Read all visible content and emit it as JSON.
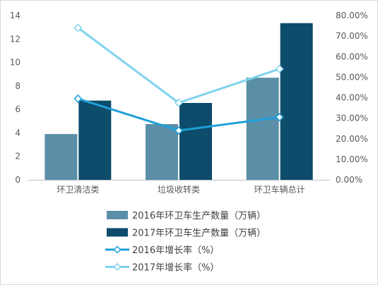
{
  "chart_data": {
    "type": "bar",
    "categories": [
      "环卫清洁类",
      "垃圾收转类",
      "环卫车辆总计"
    ],
    "series": [
      {
        "name": "2016年环卫车生产数量（万辆）",
        "kind": "bar",
        "axis": "left",
        "color": "#5b8fa8",
        "values": [
          3.9,
          4.75,
          8.7
        ]
      },
      {
        "name": "2017年环卫车生产数量（万辆）",
        "kind": "bar",
        "axis": "left",
        "color": "#0d4c6b",
        "values": [
          6.75,
          6.55,
          13.35
        ]
      },
      {
        "name": "2016年增长率（%）",
        "kind": "line",
        "axis": "right",
        "color": "#1ea0d8",
        "values": [
          0.395,
          0.24,
          0.305
        ]
      },
      {
        "name": "2017年增长率（%）",
        "kind": "line",
        "axis": "right",
        "color": "#7fd3ee",
        "values": [
          0.74,
          0.375,
          0.54
        ]
      }
    ],
    "y_left": {
      "min": 0,
      "max": 14,
      "step": 2,
      "ticks": [
        "0",
        "2",
        "4",
        "6",
        "8",
        "10",
        "12",
        "14"
      ]
    },
    "y_right": {
      "min": 0,
      "max": 0.8,
      "step": 0.1,
      "ticks": [
        "0.00%",
        "10.00%",
        "20.00%",
        "30.00%",
        "40.00%",
        "50.00%",
        "60.00%",
        "70.00%",
        "80.00%"
      ]
    },
    "grid": false,
    "legend_position": "bottom"
  }
}
